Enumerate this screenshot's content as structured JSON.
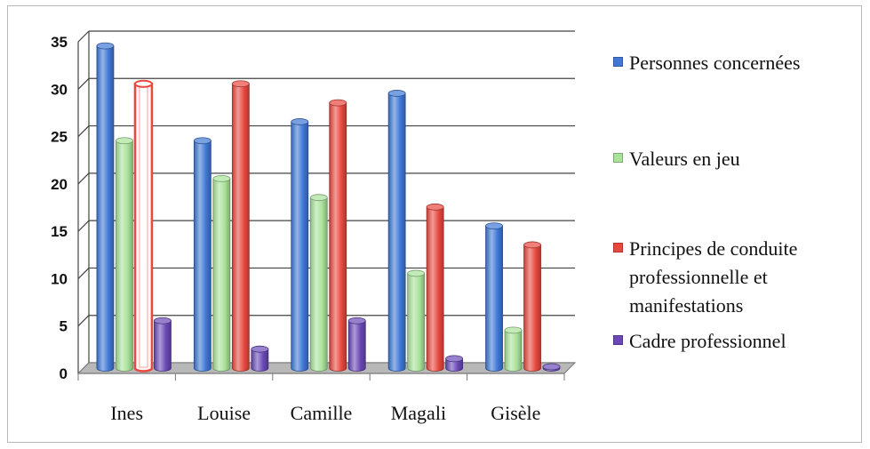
{
  "chart_data": {
    "type": "bar",
    "categories": [
      "Ines",
      "Louise",
      "Camille",
      "Magali",
      "Gisèle"
    ],
    "series": [
      {
        "name": "Personnes concernées",
        "color": "#3f78d6",
        "values": [
          34,
          24,
          26,
          29,
          15
        ]
      },
      {
        "name": "Valeurs en jeu",
        "color": "#a9e29a",
        "values": [
          24,
          20,
          18,
          10,
          4
        ]
      },
      {
        "name": "Principes de conduite professionnelle et manifestations",
        "color": "#e8493f",
        "values": [
          30,
          30,
          28,
          17,
          13
        ]
      },
      {
        "name": "Cadre professionnel",
        "color": "#6a49b6",
        "values": [
          5,
          2,
          5,
          1,
          0
        ]
      }
    ],
    "ylim": [
      0,
      35
    ],
    "yticks": [
      0,
      5,
      10,
      15,
      20,
      25,
      30,
      35
    ],
    "grid": true,
    "legend_position": "right",
    "highlighted_bar": {
      "category": "Ines",
      "series": "Principes de conduite professionnelle et manifestations"
    }
  },
  "legend": {
    "items": [
      {
        "label": "Personnes concernées",
        "color": "#3f78d6"
      },
      {
        "label": "Valeurs en jeu",
        "color": "#a9e29a"
      },
      {
        "label": "Principes de conduite\nprofessionnelle et\nmanifestations",
        "color": "#e8493f"
      },
      {
        "label": "Cadre professionnel",
        "color": "#6a49b6"
      }
    ]
  }
}
